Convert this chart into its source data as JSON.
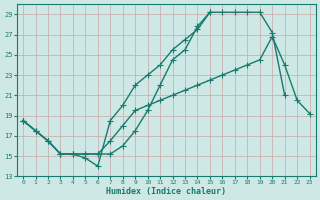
{
  "xlabel": "Humidex (Indice chaleur)",
  "bg_color": "#cde8e5",
  "line_color": "#1a7a6e",
  "grid_color": "#b8d8d5",
  "xlim": [
    -0.5,
    23.5
  ],
  "ylim": [
    13,
    30
  ],
  "yticks": [
    13,
    15,
    17,
    19,
    21,
    23,
    25,
    27,
    29
  ],
  "xticks": [
    0,
    1,
    2,
    3,
    4,
    5,
    6,
    7,
    8,
    9,
    10,
    11,
    12,
    13,
    14,
    15,
    16,
    17,
    18,
    19,
    20,
    21,
    22,
    23
  ],
  "line1_x": [
    0,
    1,
    2,
    3,
    4,
    5,
    6,
    7,
    8,
    9,
    10,
    11,
    12,
    13,
    14,
    15,
    16,
    17,
    18,
    19,
    20,
    21
  ],
  "line1_y": [
    18.5,
    17.5,
    16.5,
    15.2,
    15.2,
    14.8,
    14.0,
    18.5,
    20.0,
    22.0,
    23.0,
    24.0,
    25.5,
    26.5,
    27.5,
    29.2,
    29.2,
    29.2,
    29.2,
    29.2,
    27.2,
    21.0
  ],
  "line2_x": [
    0,
    1,
    2,
    3,
    4,
    5,
    6,
    7,
    8,
    9,
    10,
    11,
    12,
    13,
    14,
    15,
    16,
    17,
    18,
    19,
    20,
    21,
    22,
    23
  ],
  "line2_y": [
    18.5,
    17.5,
    16.5,
    15.2,
    15.2,
    15.2,
    15.2,
    16.5,
    18.0,
    19.5,
    20.0,
    20.5,
    21.0,
    21.5,
    22.0,
    22.5,
    23.0,
    23.5,
    24.0,
    24.5,
    26.8,
    24.0,
    20.5,
    19.2
  ],
  "line3_x": [
    0,
    1,
    2,
    3,
    4,
    5,
    6,
    7,
    8,
    9,
    10,
    11,
    12,
    13,
    14,
    15
  ],
  "line3_y": [
    18.5,
    17.5,
    16.5,
    15.2,
    15.2,
    15.2,
    15.2,
    15.2,
    16.0,
    17.5,
    19.5,
    22.0,
    24.5,
    25.5,
    27.8,
    29.2
  ],
  "marker_size": 2.5,
  "line_width": 1.0
}
